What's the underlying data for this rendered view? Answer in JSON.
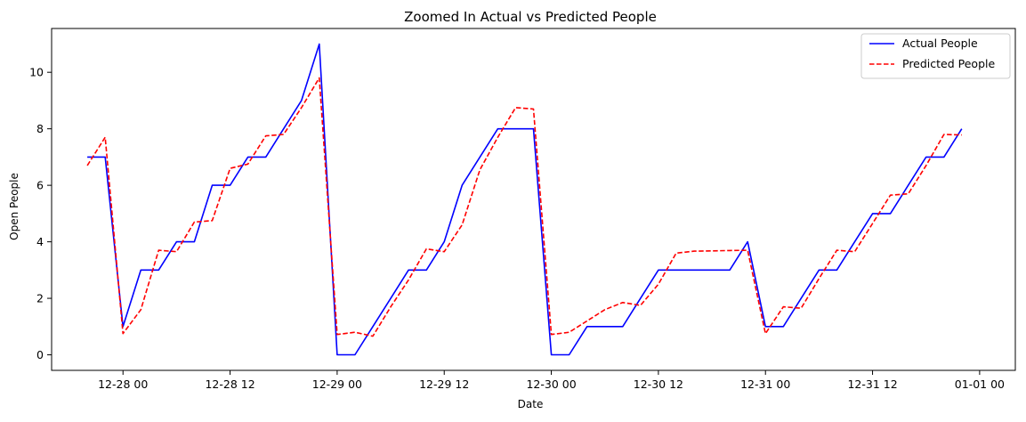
{
  "chart_data": {
    "type": "line",
    "title": "Zoomed In Actual vs Predicted People",
    "xlabel": "Date",
    "ylabel": "Open People",
    "x_axis": {
      "ticks": [
        "2023-12-28T00:00",
        "2023-12-28T12:00",
        "2023-12-29T00:00",
        "2023-12-29T12:00",
        "2023-12-30T00:00",
        "2023-12-30T12:00",
        "2023-12-31T00:00",
        "2023-12-31T12:00",
        "2024-01-01T00:00"
      ],
      "tick_labels": [
        "12-28 00",
        "12-28 12",
        "12-29 00",
        "12-29 12",
        "12-30 00",
        "12-30 12",
        "12-31 00",
        "12-31 12",
        "01-01 00"
      ]
    },
    "ylim": [
      -0.55,
      11.55
    ],
    "yticks": [
      0,
      2,
      4,
      6,
      8,
      10
    ],
    "legend_position": "top-right",
    "grid": false,
    "x": [
      "2023-12-27T20:00",
      "2023-12-27T22:00",
      "2023-12-28T00:00",
      "2023-12-28T02:00",
      "2023-12-28T04:00",
      "2023-12-28T06:00",
      "2023-12-28T08:00",
      "2023-12-28T10:00",
      "2023-12-28T12:00",
      "2023-12-28T14:00",
      "2023-12-28T16:00",
      "2023-12-28T18:00",
      "2023-12-28T20:00",
      "2023-12-28T22:00",
      "2023-12-29T00:00",
      "2023-12-29T02:00",
      "2023-12-29T04:00",
      "2023-12-29T06:00",
      "2023-12-29T08:00",
      "2023-12-29T10:00",
      "2023-12-29T12:00",
      "2023-12-29T14:00",
      "2023-12-29T16:00",
      "2023-12-29T18:00",
      "2023-12-29T20:00",
      "2023-12-29T22:00",
      "2023-12-30T00:00",
      "2023-12-30T02:00",
      "2023-12-30T04:00",
      "2023-12-30T06:00",
      "2023-12-30T08:00",
      "2023-12-30T10:00",
      "2023-12-30T12:00",
      "2023-12-30T14:00",
      "2023-12-30T16:00",
      "2023-12-30T18:00",
      "2023-12-30T20:00",
      "2023-12-30T22:00",
      "2023-12-31T00:00",
      "2023-12-31T02:00",
      "2023-12-31T04:00",
      "2023-12-31T06:00",
      "2023-12-31T08:00",
      "2023-12-31T10:00",
      "2023-12-31T12:00",
      "2023-12-31T14:00",
      "2023-12-31T16:00",
      "2023-12-31T18:00",
      "2023-12-31T20:00",
      "2023-12-31T22:00"
    ],
    "series": [
      {
        "name": "Actual People",
        "color": "#0000ff",
        "style": "solid",
        "values": [
          7,
          7,
          1,
          3,
          3,
          4,
          4,
          6,
          6,
          7,
          7,
          8,
          9,
          11,
          0,
          0,
          1,
          2,
          3,
          3,
          4,
          6,
          7,
          8,
          8,
          8,
          0,
          0,
          1,
          1,
          1,
          2,
          3,
          3,
          3,
          3,
          3,
          4,
          1,
          1,
          2,
          3,
          3,
          4,
          5,
          5,
          6,
          7,
          7,
          8
        ]
      },
      {
        "name": "Predicted People",
        "color": "#ff0000",
        "style": "dashed",
        "values": [
          6.7,
          7.7,
          0.75,
          1.6,
          3.7,
          3.65,
          4.7,
          4.75,
          6.6,
          6.75,
          7.75,
          7.8,
          8.75,
          9.8,
          0.72,
          0.8,
          0.66,
          1.7,
          2.65,
          3.75,
          3.65,
          4.6,
          6.55,
          7.7,
          8.75,
          8.7,
          0.72,
          0.8,
          1.2,
          1.6,
          1.85,
          1.75,
          2.5,
          3.6,
          3.67,
          3.68,
          3.69,
          3.7,
          0.75,
          1.7,
          1.65,
          2.7,
          3.7,
          3.65,
          4.65,
          5.65,
          5.7,
          6.7,
          7.8,
          7.78
        ]
      }
    ]
  }
}
